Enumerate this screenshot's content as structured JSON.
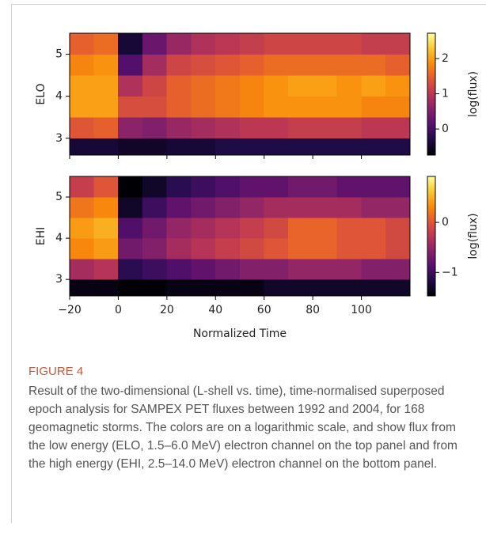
{
  "chart_data": [
    {
      "type": "heatmap",
      "ylabel": "ELO",
      "colorbar_label": "log(flux)",
      "colormap": "inferno",
      "x_edges": [
        -20,
        -10,
        0,
        10,
        20,
        30,
        40,
        50,
        60,
        70,
        80,
        90,
        100,
        110,
        120
      ],
      "y_edges": [
        2.6,
        3.0,
        3.5,
        4.0,
        4.5,
        5.0,
        5.5
      ],
      "z": [
        [
          -0.4,
          -0.4,
          -0.5,
          -0.5,
          -0.4,
          -0.4,
          -0.3,
          -0.3,
          -0.3,
          -0.3,
          -0.3,
          -0.3,
          -0.3,
          -0.3
        ],
        [
          1.4,
          1.5,
          0.6,
          0.5,
          0.7,
          0.8,
          0.9,
          1.0,
          1.0,
          1.1,
          1.1,
          1.1,
          1.0,
          1.0
        ],
        [
          2.0,
          2.0,
          1.3,
          1.3,
          1.5,
          1.6,
          1.7,
          1.8,
          1.9,
          1.9,
          1.9,
          1.9,
          1.8,
          1.8
        ],
        [
          2.0,
          2.0,
          0.9,
          1.2,
          1.5,
          1.6,
          1.7,
          1.8,
          1.9,
          2.0,
          2.0,
          1.9,
          2.0,
          1.9
        ],
        [
          1.8,
          1.9,
          0.1,
          0.8,
          1.2,
          1.3,
          1.4,
          1.5,
          1.6,
          1.6,
          1.6,
          1.6,
          1.6,
          1.5
        ],
        [
          1.5,
          1.6,
          -0.4,
          0.3,
          0.7,
          0.9,
          1.0,
          1.1,
          1.2,
          1.2,
          1.2,
          1.2,
          1.1,
          1.1
        ]
      ],
      "xlim": [
        -20,
        120
      ],
      "xticks": [
        -20,
        0,
        20,
        40,
        60,
        80,
        100
      ],
      "ylim": [
        2.6,
        5.5
      ],
      "yticks": [
        3,
        4,
        5
      ],
      "clim": [
        -0.74,
        2.72
      ],
      "cticks": [
        0,
        1,
        2
      ]
    },
    {
      "type": "heatmap",
      "ylabel": "EHI",
      "colorbar_label": "log(flux)",
      "colormap": "inferno",
      "x_edges": [
        -20,
        -10,
        0,
        10,
        20,
        30,
        40,
        50,
        60,
        70,
        80,
        90,
        100,
        110,
        120
      ],
      "y_edges": [
        2.6,
        3.0,
        3.5,
        4.0,
        4.5,
        5.0,
        5.5
      ],
      "z": [
        [
          -1.4,
          -1.4,
          -1.5,
          -1.5,
          -1.4,
          -1.4,
          -1.4,
          -1.4,
          -1.3,
          -1.3,
          -1.3,
          -1.3,
          -1.3,
          -1.3
        ],
        [
          -0.4,
          -0.3,
          -1.1,
          -1.0,
          -0.9,
          -0.8,
          -0.7,
          -0.6,
          -0.6,
          -0.5,
          -0.5,
          -0.5,
          -0.6,
          -0.6
        ],
        [
          0.3,
          0.4,
          -0.7,
          -0.6,
          -0.4,
          -0.3,
          -0.2,
          -0.1,
          0.0,
          0.1,
          0.1,
          0.0,
          0.0,
          -0.1
        ],
        [
          0.4,
          0.5,
          -0.9,
          -0.7,
          -0.5,
          -0.4,
          -0.3,
          -0.2,
          -0.1,
          0.1,
          0.1,
          0.0,
          0.0,
          -0.1
        ],
        [
          0.2,
          0.3,
          -1.3,
          -1.0,
          -0.8,
          -0.7,
          -0.6,
          -0.5,
          -0.4,
          -0.4,
          -0.4,
          -0.4,
          -0.5,
          -0.5
        ],
        [
          -0.2,
          0.0,
          -1.5,
          -1.3,
          -1.1,
          -1.0,
          -0.9,
          -0.8,
          -0.8,
          -0.7,
          -0.7,
          -0.8,
          -0.8,
          -0.8
        ]
      ],
      "xlim": [
        -20,
        120
      ],
      "xticks": [
        {
          "value": -20,
          "label": "−20"
        },
        0,
        20,
        40,
        60,
        80,
        100
      ],
      "xlabel": "Normalized Time",
      "ylim": [
        2.6,
        5.5
      ],
      "yticks": [
        3,
        4,
        5
      ],
      "clim": [
        -1.47,
        0.92
      ],
      "cticks": [
        {
          "value": -1,
          "label": "−1"
        },
        0
      ]
    }
  ],
  "caption": {
    "label": "FIGURE 4",
    "text": "Result of the two-dimensional (L-shell vs. time), time-normalised superposed epoch analysis for SAMPEX PET fluxes between 1992 and 2004, for 168 geomagnetic storms. The colors are on a logarithmic scale, and show flux from the low energy (ELO, 1.5–6.0 MeV) electron channel on the top panel and from the high energy (EHI, 2.5–14.0 MeV) electron channel on the bottom panel."
  }
}
